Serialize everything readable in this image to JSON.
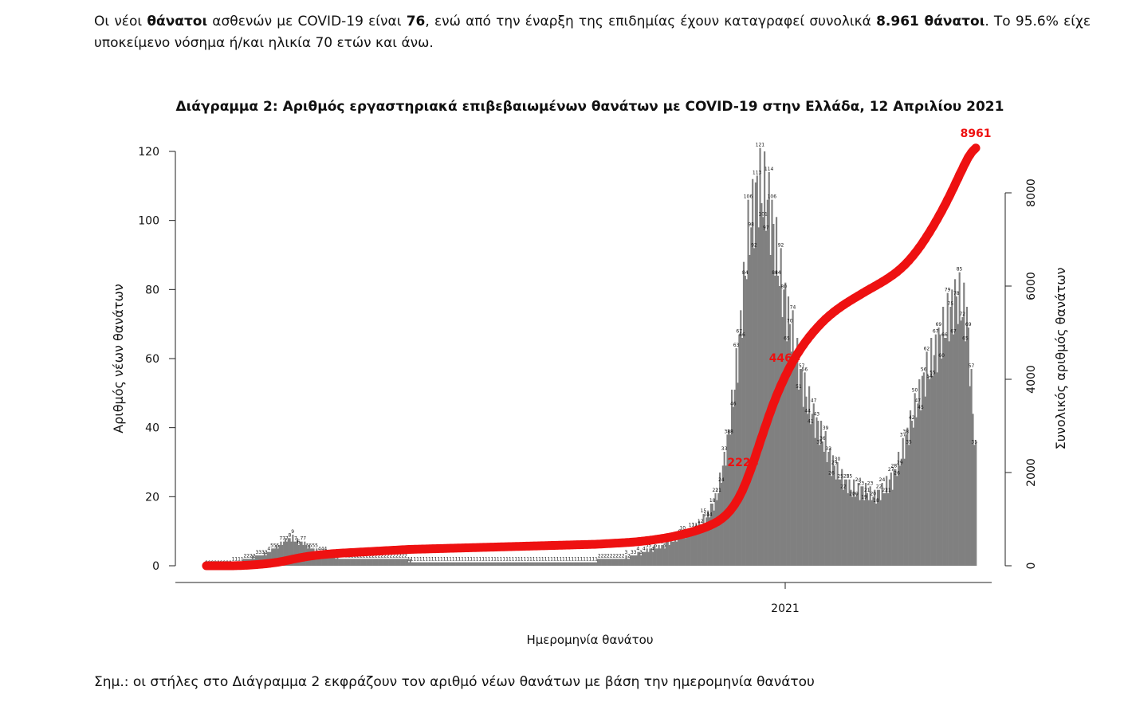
{
  "intro": {
    "p1": "Οι νέοι ",
    "b1": "θάνατοι",
    "p2": " ασθενών με COVID-19 είναι ",
    "b2": "76",
    "p3": ", ενώ από την έναρξη της επιδημίας έχουν καταγραφεί συνολικά ",
    "b3": "8.961 θάνατοι",
    "p4": ".  Το 95.6% είχε υποκείμενο νόσημα ή/και ηλικία 70 ετών και άνω."
  },
  "note": "Σημ.: οι στήλες στο Διάγραμμα 2 εκφράζουν τον αριθμό νέων θανάτων με βάση την ημερομηνία θανάτου",
  "chart_data": {
    "type": "bar",
    "title": "Διάγραμμα 2: Αριθμός εργαστηριακά επιβεβαιωμένων θανάτων με COVID-19 στην Ελλάδα, 12 Απριλίου 2021",
    "xlabel": "Ημερομηνία θανάτου",
    "ylabel": "Αριθμός νέων θανάτων",
    "y2label": "Συνολικός αριθμός θανάτων",
    "ylim": [
      0,
      120
    ],
    "y2lim": [
      0,
      9000
    ],
    "yticks": [
      0,
      20,
      40,
      60,
      80,
      100,
      120
    ],
    "y2ticks": [
      0,
      2000,
      4000,
      6000,
      8000
    ],
    "x_tick_label": "2021",
    "bar_color": "#808080",
    "line_color": "#ee1111",
    "weekly_anchor_values": [
      0,
      0,
      0,
      1,
      2,
      3,
      4,
      6,
      8,
      7,
      5,
      4,
      3,
      2,
      2,
      2,
      2,
      2,
      2,
      2,
      1,
      1,
      1,
      1,
      1,
      1,
      1,
      1,
      1,
      1,
      1,
      1,
      1,
      1,
      1,
      1,
      1,
      1,
      2,
      2,
      2,
      3,
      4,
      5,
      6,
      8,
      9,
      11,
      14,
      20,
      35,
      60,
      95,
      110,
      105,
      85,
      70,
      55,
      45,
      38,
      30,
      25,
      22,
      22,
      20,
      22,
      26,
      35,
      45,
      55,
      62,
      70,
      78,
      72,
      25
    ],
    "cumulative_labels": [
      {
        "text": "2224",
        "value": 2224
      },
      {
        "text": "4464",
        "value": 4464
      },
      {
        "text": "8961",
        "value": 8961
      }
    ]
  }
}
